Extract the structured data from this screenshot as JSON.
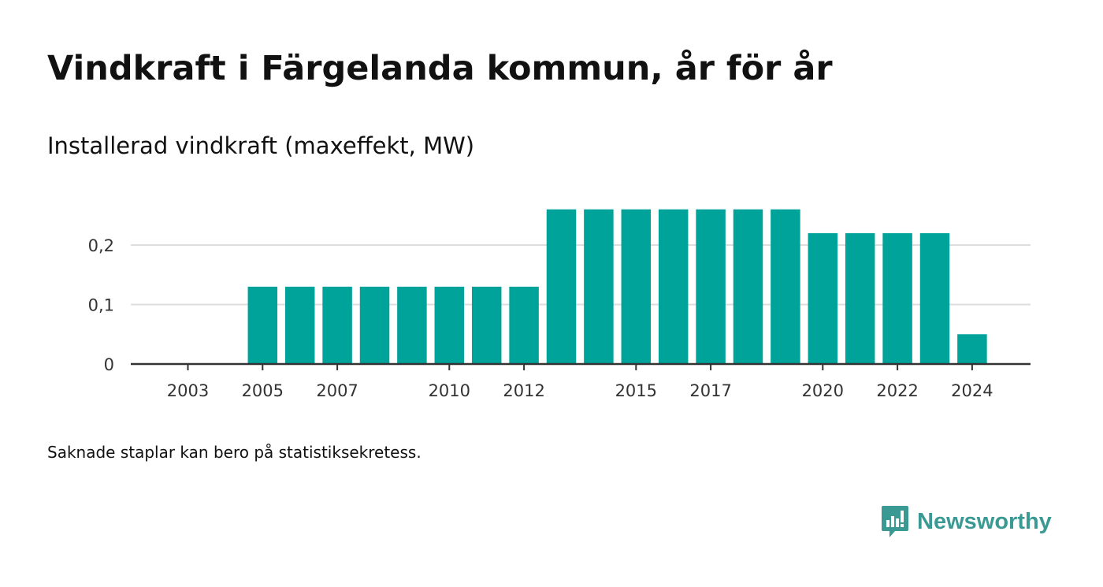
{
  "title": "Vindkraft i Färgelanda kommun, år för år",
  "subtitle": "Installerad vindkraft (maxeffekt, MW)",
  "note": "Saknade staplar kan bero på statistiksekretess.",
  "brand": {
    "name": "Newsworthy",
    "color": "#3a9a93",
    "icon": "newsworthy-logo-icon"
  },
  "colors": {
    "bar": "#00a39a",
    "grid": "#dddddd",
    "axis": "#333333"
  },
  "chart_data": {
    "type": "bar",
    "categories": [
      "2003",
      "2004",
      "2005",
      "2006",
      "2007",
      "2008",
      "2009",
      "2010",
      "2011",
      "2012",
      "2013",
      "2014",
      "2015",
      "2016",
      "2017",
      "2018",
      "2019",
      "2020",
      "2021",
      "2022",
      "2023",
      "2024"
    ],
    "values": [
      null,
      null,
      0.13,
      0.13,
      0.13,
      0.13,
      0.13,
      0.13,
      0.13,
      0.13,
      0.26,
      0.26,
      0.26,
      0.26,
      0.26,
      0.26,
      0.26,
      0.22,
      0.22,
      0.22,
      0.22,
      0.05
    ],
    "x_tick_labels": [
      "2003",
      "2005",
      "2007",
      "2010",
      "2012",
      "2015",
      "2017",
      "2020",
      "2022",
      "2024"
    ],
    "y_ticks": [
      0,
      0.1,
      0.2
    ],
    "y_tick_labels": [
      "0",
      "0,1",
      "0,2"
    ],
    "ylim": [
      0,
      0.26
    ],
    "grid": true,
    "legend": "none"
  }
}
